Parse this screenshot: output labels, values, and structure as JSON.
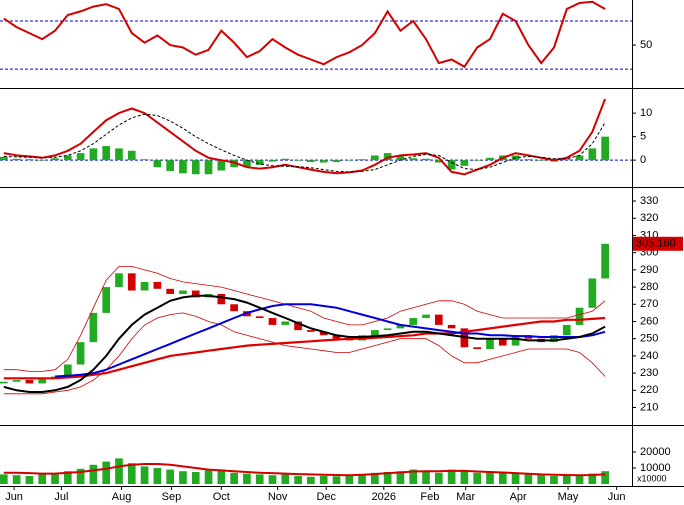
{
  "chart_data": [
    {
      "type": "line",
      "ylim": [
        16,
        85
      ],
      "yticks": [
        50
      ],
      "reference_lines": [
        70,
        30
      ],
      "reference_color": "#0000cc",
      "xlim": [
        -0.3,
        49.1
      ],
      "series": [
        {
          "color": "#d40000",
          "width": 2,
          "values": [
            72,
            65,
            60,
            55,
            62,
            75,
            78,
            82,
            84,
            80,
            60,
            52,
            58,
            50,
            48,
            42,
            46,
            62,
            52,
            40,
            45,
            55,
            48,
            42,
            38,
            34,
            40,
            44,
            50,
            60,
            78,
            62,
            70,
            55,
            35,
            38,
            32,
            48,
            55,
            76,
            70,
            50,
            35,
            48,
            80,
            85,
            86,
            80
          ]
        }
      ]
    },
    {
      "type": "line",
      "ylim": [
        -5.5,
        14.5
      ],
      "yticks": [
        0,
        5,
        10
      ],
      "reference_lines": [
        0
      ],
      "reference_color": "#0000cc",
      "xlim": [
        -0.3,
        49.1
      ],
      "bars": {
        "color": "#22aa22",
        "values": [
          0.7,
          0.3,
          0.2,
          0,
          0.4,
          1,
          1.5,
          2.5,
          3,
          2.5,
          2,
          0.2,
          -1.5,
          -2.3,
          -2.8,
          -3,
          -3,
          -2.2,
          -1.5,
          -1.5,
          -1,
          -0.3,
          0.3,
          -0.1,
          -0.4,
          -0.5,
          -0.4,
          -0.1,
          0.2,
          1,
          1.5,
          1,
          0.4,
          0.3,
          -0.5,
          -2,
          -1.2,
          0,
          0.5,
          1,
          1,
          0.2,
          -0.1,
          -0.3,
          0.2,
          1,
          2.5,
          5
        ]
      },
      "series": [
        {
          "color": "#d40000",
          "width": 2,
          "values": [
            1.5,
            1,
            0.8,
            0.5,
            1,
            2,
            3.5,
            6,
            8.5,
            10,
            11,
            10,
            8,
            6,
            4,
            2,
            0.5,
            0,
            -0.5,
            -1.5,
            -1.8,
            -1.5,
            -1,
            -1.5,
            -2,
            -2.5,
            -2.8,
            -2.6,
            -2.2,
            -1,
            0.5,
            1,
            1.2,
            1.5,
            0.5,
            -2.5,
            -3,
            -2,
            -1,
            0.5,
            1.5,
            1,
            0.5,
            0,
            0.5,
            2,
            6,
            13
          ]
        },
        {
          "color": "#000000",
          "width": 1,
          "dash": true,
          "values": [
            0.8,
            0.7,
            0.6,
            0.5,
            0.6,
            1,
            2,
            3.5,
            5.5,
            7.5,
            9,
            9.8,
            9.5,
            8.3,
            6.8,
            5,
            3.5,
            2.2,
            1,
            0,
            -0.8,
            -1.2,
            -1.3,
            -1.4,
            -1.6,
            -2,
            -2.4,
            -2.5,
            -2.4,
            -2,
            -1,
            0,
            0.8,
            1.2,
            1,
            -0.5,
            -1.8,
            -2,
            -1.5,
            -0.5,
            0.5,
            0.8,
            0.6,
            0.3,
            0.3,
            1,
            3.5,
            8
          ]
        }
      ]
    },
    {
      "type": "candlestick",
      "ylim": [
        201,
        337
      ],
      "yticks": [
        210,
        220,
        230,
        240,
        250,
        260,
        270,
        280,
        290,
        300,
        310,
        320,
        330
      ],
      "xlim": [
        -0.3,
        49.1
      ],
      "up_color": "#22aa22",
      "down_color": "#d40000",
      "open": [
        224,
        225,
        226,
        224,
        227,
        228,
        235,
        248,
        265,
        280,
        288,
        278,
        283,
        279,
        276,
        278,
        274,
        276,
        270,
        266,
        263,
        262,
        258,
        260,
        255,
        254,
        252,
        250,
        249,
        252,
        255,
        256,
        258,
        262,
        264,
        258,
        256,
        245,
        244,
        250,
        246,
        252,
        250,
        248,
        252,
        258,
        268,
        285
      ],
      "close": [
        225,
        226,
        224,
        227,
        228,
        235,
        248,
        265,
        280,
        288,
        278,
        283,
        279,
        276,
        278,
        274,
        276,
        270,
        266,
        263,
        262,
        258,
        260,
        255,
        254,
        252,
        250,
        249,
        252,
        255,
        256,
        258,
        262,
        264,
        258,
        256,
        245,
        244,
        250,
        246,
        252,
        250,
        248,
        252,
        258,
        268,
        285,
        305.16
      ],
      "price_tag": {
        "value": 305.16,
        "label": "305.160",
        "color": "#d40000"
      },
      "series": [
        {
          "color": "#d40000",
          "width": 0.8,
          "values": [
            232,
            232,
            231,
            231,
            232,
            238,
            252,
            268,
            284,
            292,
            292,
            290,
            288,
            285,
            283,
            282,
            281,
            280,
            278,
            276,
            274,
            272,
            270,
            268,
            266,
            262,
            260,
            258,
            258,
            260,
            262,
            266,
            268,
            270,
            272,
            272,
            270,
            266,
            264,
            262,
            262,
            262,
            262,
            262,
            262,
            264,
            266,
            272
          ]
        },
        {
          "color": "#d40000",
          "width": 0.8,
          "values": [
            218,
            218,
            218,
            218,
            219,
            220,
            222,
            226,
            232,
            240,
            250,
            258,
            262,
            264,
            265,
            263,
            260,
            258,
            254,
            252,
            250,
            248,
            246,
            245,
            244,
            243,
            242,
            242,
            244,
            246,
            248,
            250,
            250,
            250,
            246,
            240,
            236,
            236,
            238,
            240,
            242,
            244,
            244,
            244,
            244,
            242,
            236,
            228
          ]
        },
        {
          "color": "#e00000",
          "width": 2.2,
          "values": [
            227,
            227,
            227,
            227,
            227,
            227.5,
            228,
            229,
            230,
            232,
            234,
            236,
            238,
            240,
            241,
            242,
            243,
            244,
            245,
            246,
            246.5,
            247,
            247.5,
            248,
            248.5,
            249,
            249.5,
            250,
            250,
            250.5,
            251,
            251.5,
            252,
            253,
            253,
            253,
            254,
            255,
            256,
            257,
            258,
            259,
            260,
            260,
            261,
            261,
            261.5,
            262
          ]
        },
        {
          "color": "#0000dd",
          "width": 2,
          "values": [
            null,
            null,
            null,
            null,
            228,
            228.5,
            229,
            230,
            232,
            235,
            238,
            241,
            244,
            247,
            250,
            253,
            256,
            259,
            262,
            265,
            267,
            269,
            270,
            270,
            270,
            269,
            268,
            266,
            264,
            262,
            260,
            258,
            257,
            256,
            255,
            254,
            253,
            253,
            252,
            252,
            251.5,
            251.5,
            251,
            251,
            251,
            251,
            252,
            254
          ]
        },
        {
          "color": "#000000",
          "width": 2,
          "values": [
            222,
            220,
            219,
            219,
            220,
            222,
            226,
            232,
            240,
            250,
            258,
            264,
            268,
            272,
            274,
            275,
            275,
            274,
            273,
            271,
            268,
            265,
            262,
            259,
            256,
            254,
            252,
            251,
            251,
            251.5,
            252,
            253,
            254,
            254,
            253,
            252,
            251,
            250,
            250,
            250,
            250,
            249,
            249,
            249,
            250,
            251,
            253,
            257
          ]
        }
      ]
    },
    {
      "type": "bar",
      "ylim": [
        0,
        35000
      ],
      "yticks": [
        10000,
        20000
      ],
      "unit_label": "x10000",
      "xlim": [
        -0.3,
        49.1
      ],
      "xticks": [
        {
          "value": 0.8,
          "label": "Jun"
        },
        {
          "value": 4.5,
          "label": "Jul"
        },
        {
          "value": 9.2,
          "label": "Aug"
        },
        {
          "value": 13.1,
          "label": "Sep"
        },
        {
          "value": 17,
          "label": "Oct"
        },
        {
          "value": 21.4,
          "label": "Nov"
        },
        {
          "value": 25.2,
          "label": "Dec"
        },
        {
          "value": 29.7,
          "label": "2026"
        },
        {
          "value": 33.3,
          "label": "Feb"
        },
        {
          "value": 36.1,
          "label": "Mar"
        },
        {
          "value": 40.2,
          "label": "Apr"
        },
        {
          "value": 44.1,
          "label": "May"
        },
        {
          "value": 47.9,
          "label": "Jun"
        }
      ],
      "bars": {
        "color": "#22aa22",
        "values": [
          6000,
          5500,
          5000,
          6000,
          6500,
          8000,
          9500,
          12000,
          14000,
          16000,
          13000,
          11000,
          10000,
          9000,
          8000,
          7500,
          8500,
          9000,
          7000,
          6500,
          6000,
          5500,
          6000,
          5000,
          4500,
          5000,
          4800,
          5200,
          6000,
          7000,
          7500,
          8000,
          9000,
          8500,
          7000,
          9000,
          8000,
          7000,
          7500,
          7000,
          6500,
          6000,
          5500,
          5000,
          6000,
          5500,
          6500,
          8000
        ]
      },
      "series": [
        {
          "color": "#d40000",
          "width": 2,
          "values": [
            7000,
            7000,
            6800,
            6500,
            6500,
            7000,
            7500,
            8500,
            9500,
            11000,
            12000,
            12500,
            12500,
            12000,
            11000,
            10000,
            9000,
            8500,
            8000,
            7500,
            7000,
            6800,
            6500,
            6200,
            6000,
            5800,
            5600,
            5500,
            5800,
            6200,
            6800,
            7200,
            7800,
            8000,
            8000,
            8200,
            8200,
            7800,
            7500,
            7200,
            6800,
            6400,
            6000,
            5800,
            5600,
            5500,
            5600,
            6000
          ]
        }
      ]
    }
  ]
}
